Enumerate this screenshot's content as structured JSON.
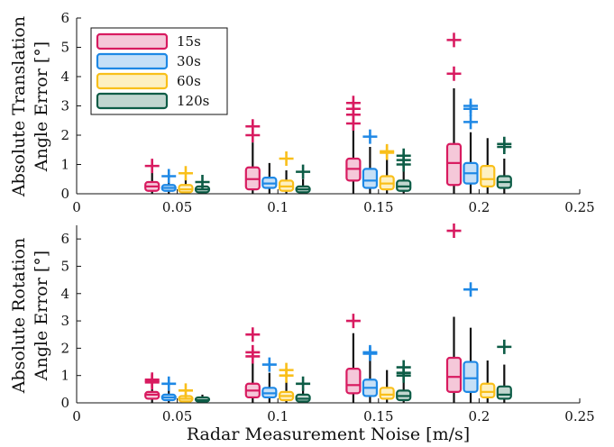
{
  "chart_data": [
    {
      "type": "box",
      "ylabel_lines": [
        "Absolute Translation",
        "Angle Error [°]"
      ],
      "xlim": [
        0,
        0.25
      ],
      "ylim": [
        0,
        6
      ],
      "xticks": [
        "0",
        "0.05",
        "0.1",
        "0.15",
        "0.2",
        "0.25"
      ],
      "yticks": [
        "0",
        "1",
        "2",
        "3",
        "4",
        "5",
        "6"
      ],
      "legend": {
        "placement": "top-left",
        "entries": [
          "15s",
          "30s",
          "60s",
          "120s"
        ]
      },
      "series": [
        {
          "name": "15s",
          "color": "#d81b60",
          "fill": "#f5c8d9",
          "boxes": [
            {
              "x": 0.05,
              "q1": 0.1,
              "median": 0.25,
              "q3": 0.4,
              "lo": 0,
              "hi": 0.75,
              "outliers": [
                0.95
              ]
            },
            {
              "x": 0.1,
              "q1": 0.15,
              "median": 0.5,
              "q3": 0.9,
              "lo": 0,
              "hi": 1.75,
              "outliers": [
                2.0,
                2.3
              ]
            },
            {
              "x": 0.15,
              "q1": 0.45,
              "median": 0.85,
              "q3": 1.2,
              "lo": 0,
              "hi": 2.3,
              "outliers": [
                2.4,
                2.7,
                2.9,
                3.1
              ]
            },
            {
              "x": 0.2,
              "q1": 0.3,
              "median": 1.05,
              "q3": 1.7,
              "lo": 0,
              "hi": 3.6,
              "outliers": [
                4.1,
                5.25
              ]
            }
          ]
        },
        {
          "name": "30s",
          "color": "#1e88e5",
          "fill": "#c6e0f7",
          "boxes": [
            {
              "x": 0.05,
              "q1": 0.1,
              "median": 0.2,
              "q3": 0.3,
              "lo": 0,
              "hi": 0.5,
              "outliers": [
                0.6
              ]
            },
            {
              "x": 0.1,
              "q1": 0.2,
              "median": 0.35,
              "q3": 0.55,
              "lo": 0,
              "hi": 1.05,
              "outliers": []
            },
            {
              "x": 0.15,
              "q1": 0.2,
              "median": 0.45,
              "q3": 0.85,
              "lo": 0,
              "hi": 1.6,
              "outliers": [
                1.95
              ]
            },
            {
              "x": 0.2,
              "q1": 0.35,
              "median": 0.7,
              "q3": 1.05,
              "lo": 0,
              "hi": 2.1,
              "outliers": [
                2.45,
                2.9,
                3.0
              ]
            }
          ]
        },
        {
          "name": "60s",
          "color": "#f9bf1a",
          "fill": "#fdf0c2",
          "boxes": [
            {
              "x": 0.05,
              "q1": 0.05,
              "median": 0.15,
              "q3": 0.3,
              "lo": 0,
              "hi": 0.5,
              "outliers": [
                0.7
              ]
            },
            {
              "x": 0.1,
              "q1": 0.1,
              "median": 0.25,
              "q3": 0.45,
              "lo": 0,
              "hi": 0.8,
              "outliers": [
                1.2
              ]
            },
            {
              "x": 0.15,
              "q1": 0.15,
              "median": 0.35,
              "q3": 0.6,
              "lo": 0,
              "hi": 1.3,
              "outliers": [
                1.4,
                1.45
              ]
            },
            {
              "x": 0.2,
              "q1": 0.25,
              "median": 0.5,
              "q3": 0.95,
              "lo": 0,
              "hi": 1.9,
              "outliers": []
            }
          ]
        },
        {
          "name": "120s",
          "color": "#0d5c46",
          "fill": "#c1d6cf",
          "boxes": [
            {
              "x": 0.05,
              "q1": 0.05,
              "median": 0.15,
              "q3": 0.25,
              "lo": 0,
              "hi": 0.35,
              "outliers": [
                0.4
              ]
            },
            {
              "x": 0.1,
              "q1": 0.05,
              "median": 0.15,
              "q3": 0.25,
              "lo": 0,
              "hi": 0.5,
              "outliers": [
                0.75
              ]
            },
            {
              "x": 0.15,
              "q1": 0.1,
              "median": 0.25,
              "q3": 0.45,
              "lo": 0,
              "hi": 0.9,
              "outliers": [
                1.0,
                1.15,
                1.3
              ]
            },
            {
              "x": 0.2,
              "q1": 0.2,
              "median": 0.4,
              "q3": 0.6,
              "lo": 0,
              "hi": 1.2,
              "outliers": [
                1.6,
                1.7
              ]
            }
          ]
        }
      ]
    },
    {
      "type": "box",
      "ylabel_lines": [
        "Absolute Rotation",
        "Angle Error [°]"
      ],
      "xlabel": "Radar Measurement Noise [m/s]",
      "xlim": [
        0,
        0.25
      ],
      "ylim": [
        0,
        6.5
      ],
      "xticks": [
        "0",
        "0.05",
        "0.1",
        "0.15",
        "0.2",
        "0.25"
      ],
      "yticks": [
        "0",
        "1",
        "2",
        "3",
        "4",
        "5",
        "6"
      ],
      "series": [
        {
          "name": "15s",
          "color": "#d81b60",
          "fill": "#f5c8d9",
          "boxes": [
            {
              "x": 0.05,
              "q1": 0.15,
              "median": 0.3,
              "q3": 0.4,
              "lo": 0,
              "hi": 0.7,
              "outliers": [
                0.75,
                0.8,
                0.85
              ]
            },
            {
              "x": 0.1,
              "q1": 0.2,
              "median": 0.45,
              "q3": 0.7,
              "lo": 0,
              "hi": 1.5,
              "outliers": [
                1.7,
                1.85,
                2.5
              ]
            },
            {
              "x": 0.15,
              "q1": 0.35,
              "median": 0.65,
              "q3": 1.25,
              "lo": 0,
              "hi": 2.55,
              "outliers": [
                3.0
              ]
            },
            {
              "x": 0.2,
              "q1": 0.4,
              "median": 0.95,
              "q3": 1.65,
              "lo": 0,
              "hi": 3.15,
              "outliers": [
                6.3
              ]
            }
          ]
        },
        {
          "name": "30s",
          "color": "#1e88e5",
          "fill": "#c6e0f7",
          "boxes": [
            {
              "x": 0.05,
              "q1": 0.1,
              "median": 0.2,
              "q3": 0.3,
              "lo": 0,
              "hi": 0.5,
              "outliers": [
                0.7
              ]
            },
            {
              "x": 0.1,
              "q1": 0.2,
              "median": 0.35,
              "q3": 0.55,
              "lo": 0,
              "hi": 1.1,
              "outliers": [
                1.4
              ]
            },
            {
              "x": 0.15,
              "q1": 0.25,
              "median": 0.55,
              "q3": 0.85,
              "lo": 0,
              "hi": 1.7,
              "outliers": [
                1.8,
                1.85
              ]
            },
            {
              "x": 0.2,
              "q1": 0.4,
              "median": 0.9,
              "q3": 1.5,
              "lo": 0,
              "hi": 2.75,
              "outliers": [
                4.15
              ]
            }
          ]
        },
        {
          "name": "60s",
          "color": "#f9bf1a",
          "fill": "#fdf0c2",
          "boxes": [
            {
              "x": 0.05,
              "q1": 0.05,
              "median": 0.15,
              "q3": 0.25,
              "lo": 0,
              "hi": 0.35,
              "outliers": [
                0.45
              ]
            },
            {
              "x": 0.1,
              "q1": 0.1,
              "median": 0.25,
              "q3": 0.4,
              "lo": 0,
              "hi": 0.8,
              "outliers": [
                1.0,
                1.2
              ]
            },
            {
              "x": 0.15,
              "q1": 0.15,
              "median": 0.3,
              "q3": 0.55,
              "lo": 0,
              "hi": 1.2,
              "outliers": []
            },
            {
              "x": 0.2,
              "q1": 0.2,
              "median": 0.4,
              "q3": 0.7,
              "lo": 0,
              "hi": 1.55,
              "outliers": []
            }
          ]
        },
        {
          "name": "120s",
          "color": "#0d5c46",
          "fill": "#c1d6cf",
          "boxes": [
            {
              "x": 0.05,
              "q1": 0.05,
              "median": 0.1,
              "q3": 0.2,
              "lo": 0,
              "hi": 0.3,
              "outliers": []
            },
            {
              "x": 0.1,
              "q1": 0.05,
              "median": 0.15,
              "q3": 0.3,
              "lo": 0,
              "hi": 0.55,
              "outliers": [
                0.7
              ]
            },
            {
              "x": 0.15,
              "q1": 0.1,
              "median": 0.25,
              "q3": 0.45,
              "lo": 0,
              "hi": 0.9,
              "outliers": [
                1.0,
                1.1,
                1.3
              ]
            },
            {
              "x": 0.2,
              "q1": 0.15,
              "median": 0.3,
              "q3": 0.6,
              "lo": 0,
              "hi": 1.4,
              "outliers": [
                2.05
              ]
            }
          ]
        }
      ]
    }
  ]
}
